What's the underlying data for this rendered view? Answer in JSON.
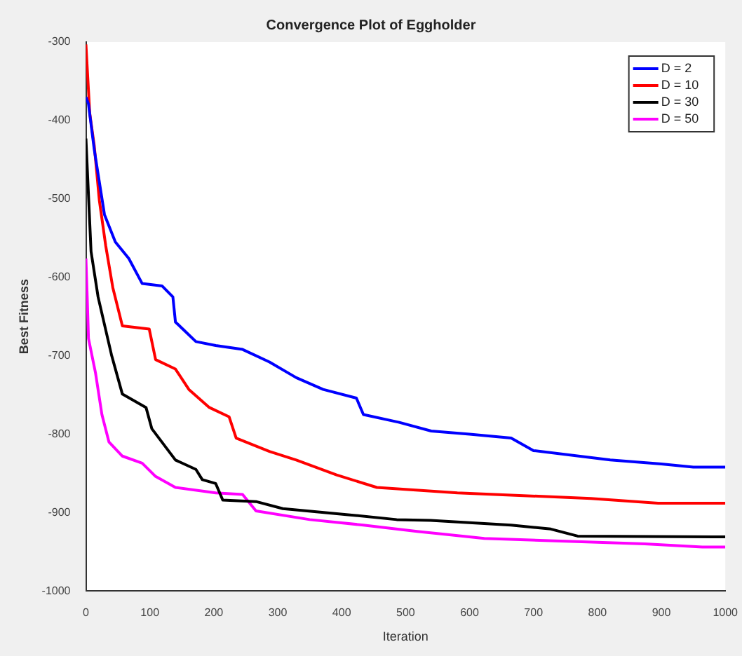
{
  "chart_data": {
    "type": "line",
    "title": "Convergence Plot of Eggholder",
    "xlabel": "Iteration",
    "ylabel": "Best Fitness",
    "xlim": [
      0,
      1000
    ],
    "xticks": [
      0,
      100,
      200,
      300,
      400,
      500,
      600,
      700,
      800,
      900,
      1000
    ],
    "ylim": [
      -1000,
      -300
    ],
    "yticks": [
      -1000,
      -900,
      -800,
      -700,
      -600,
      -500,
      -400,
      -300
    ],
    "grid": false,
    "legend": "top right",
    "marker": "none",
    "line_style": "solid",
    "series": [
      {
        "name": "D = 2",
        "color": "#0000ff",
        "x": [
          0,
          4,
          13,
          29,
          46,
          67,
          88,
          119,
          136,
          140,
          172,
          203,
          245,
          287,
          329,
          371,
          423,
          434,
          490,
          540,
          600,
          665,
          700,
          820,
          900,
          950,
          1000
        ],
        "values": [
          -370,
          -379,
          -437,
          -520,
          -555,
          -576,
          -608,
          -611,
          -625,
          -657,
          -682,
          -687,
          -692,
          -708,
          -728,
          -743,
          -754,
          -775,
          -785,
          -796,
          -800,
          -805,
          -821,
          -833,
          -838,
          -842,
          -842
        ]
      },
      {
        "name": "D = 10",
        "color": "#ff0000",
        "x": [
          0,
          6,
          13,
          21,
          31,
          42,
          57,
          99,
          109,
          140,
          161,
          193,
          224,
          235,
          287,
          329,
          392,
          455,
          581,
          790,
          895,
          1000
        ],
        "values": [
          -303,
          -391,
          -432,
          -502,
          -560,
          -613,
          -662,
          -666,
          -705,
          -717,
          -743,
          -766,
          -778,
          -805,
          -822,
          -833,
          -852,
          -868,
          -875,
          -882,
          -888,
          -888
        ]
      },
      {
        "name": "D = 30",
        "color": "#000000",
        "x": [
          0,
          8,
          19,
          40,
          57,
          94,
          103,
          140,
          172,
          182,
          203,
          214,
          266,
          308,
          413,
          486,
          539,
          665,
          727,
          769,
          1000
        ],
        "values": [
          -423,
          -567,
          -625,
          -699,
          -749,
          -766,
          -793,
          -833,
          -845,
          -858,
          -863,
          -884,
          -886,
          -895,
          -903,
          -909,
          -910,
          -916,
          -921,
          -930,
          -931
        ]
      },
      {
        "name": "D = 50",
        "color": "#ff00ff",
        "x": [
          0,
          2,
          4,
          15,
          25,
          36,
          57,
          88,
          109,
          140,
          203,
          245,
          266,
          350,
          434,
          518,
          623,
          874,
          964,
          1000
        ],
        "values": [
          -576,
          -625,
          -678,
          -722,
          -775,
          -810,
          -828,
          -837,
          -854,
          -868,
          -875,
          -877,
          -898,
          -909,
          -916,
          -924,
          -933,
          -940,
          -944,
          -944
        ]
      }
    ]
  }
}
